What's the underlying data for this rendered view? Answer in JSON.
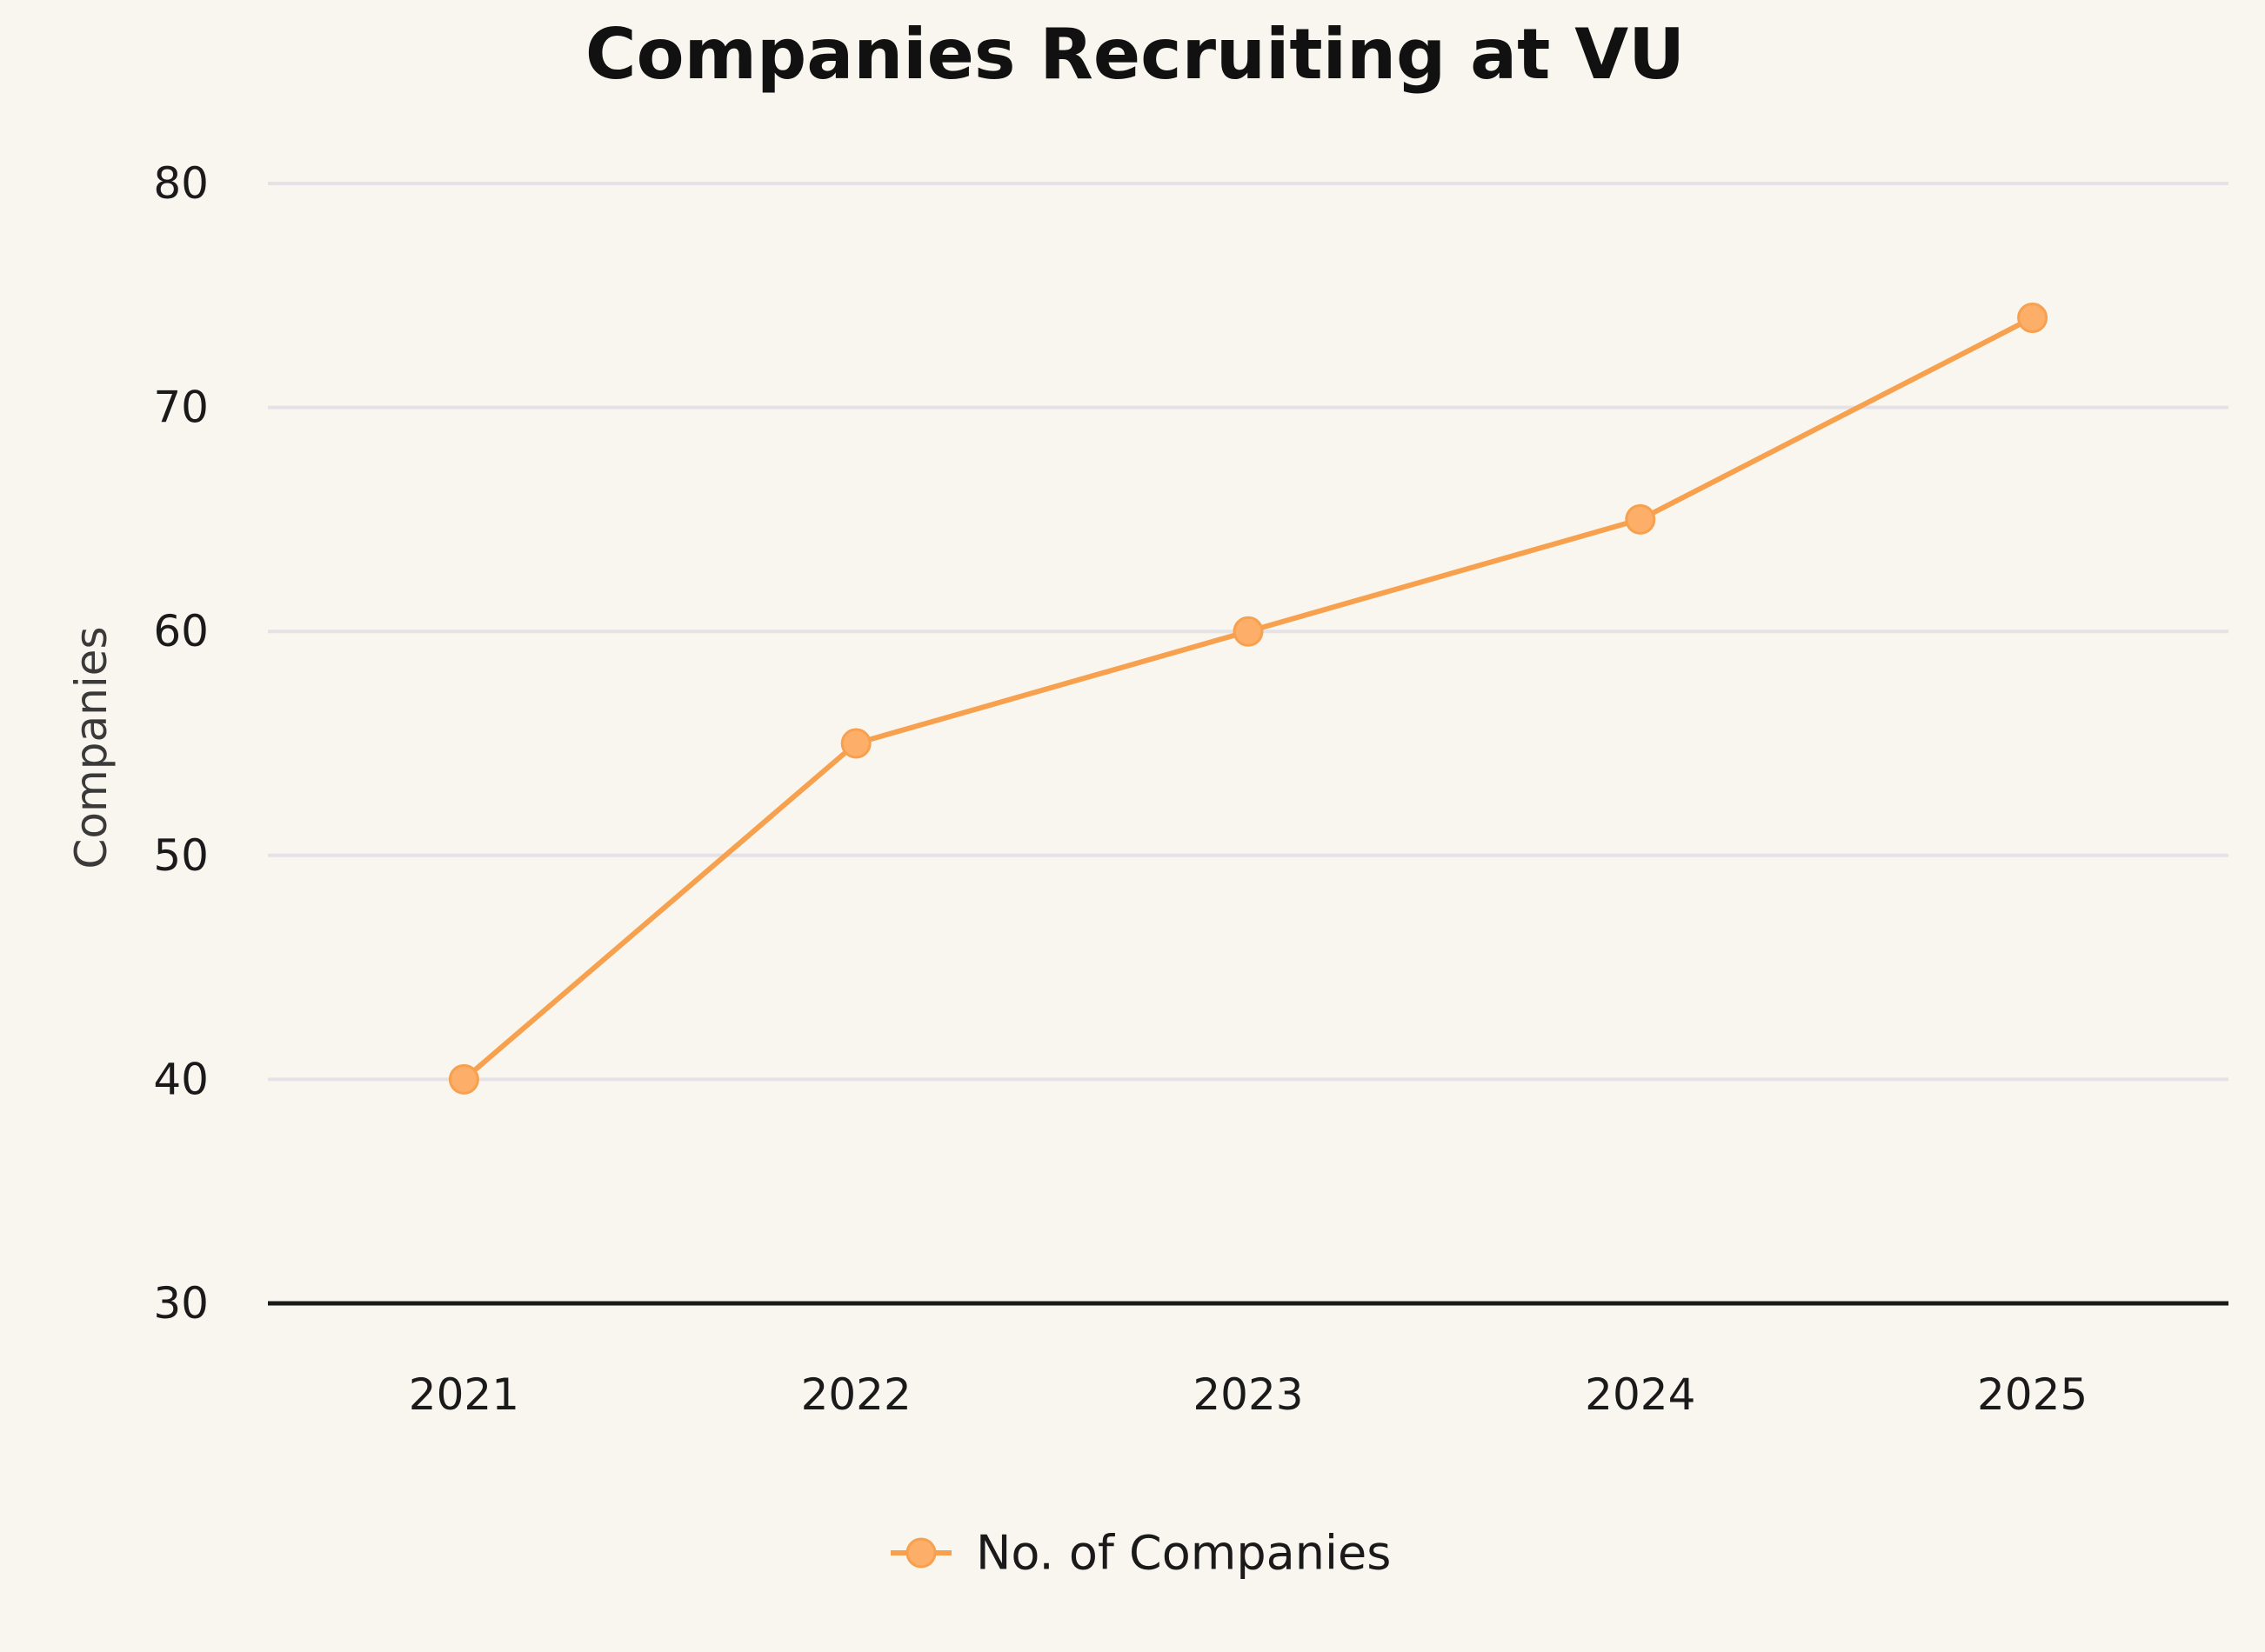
{
  "chart_data": {
    "type": "line",
    "title": "Companies Recruiting at VU",
    "xlabel": "",
    "ylabel": "Companies",
    "categories": [
      "2021",
      "2022",
      "2023",
      "2024",
      "2025"
    ],
    "series": [
      {
        "name": "No. of Companies",
        "values": [
          40,
          55,
          60,
          65,
          74
        ],
        "color": "#f7a04e",
        "marker_color": "#fdae68"
      }
    ],
    "ylim": [
      30,
      80
    ],
    "yticks": [
      30,
      40,
      50,
      60,
      70,
      80
    ],
    "ytick_labels": [
      "30",
      "40",
      "50",
      "60",
      "70",
      "80"
    ],
    "grid": true,
    "legend": "bottom-center"
  },
  "colors": {
    "background": "#f9f6ef",
    "gridline": "#e4e2e6",
    "axis": "#1a1a1a"
  }
}
